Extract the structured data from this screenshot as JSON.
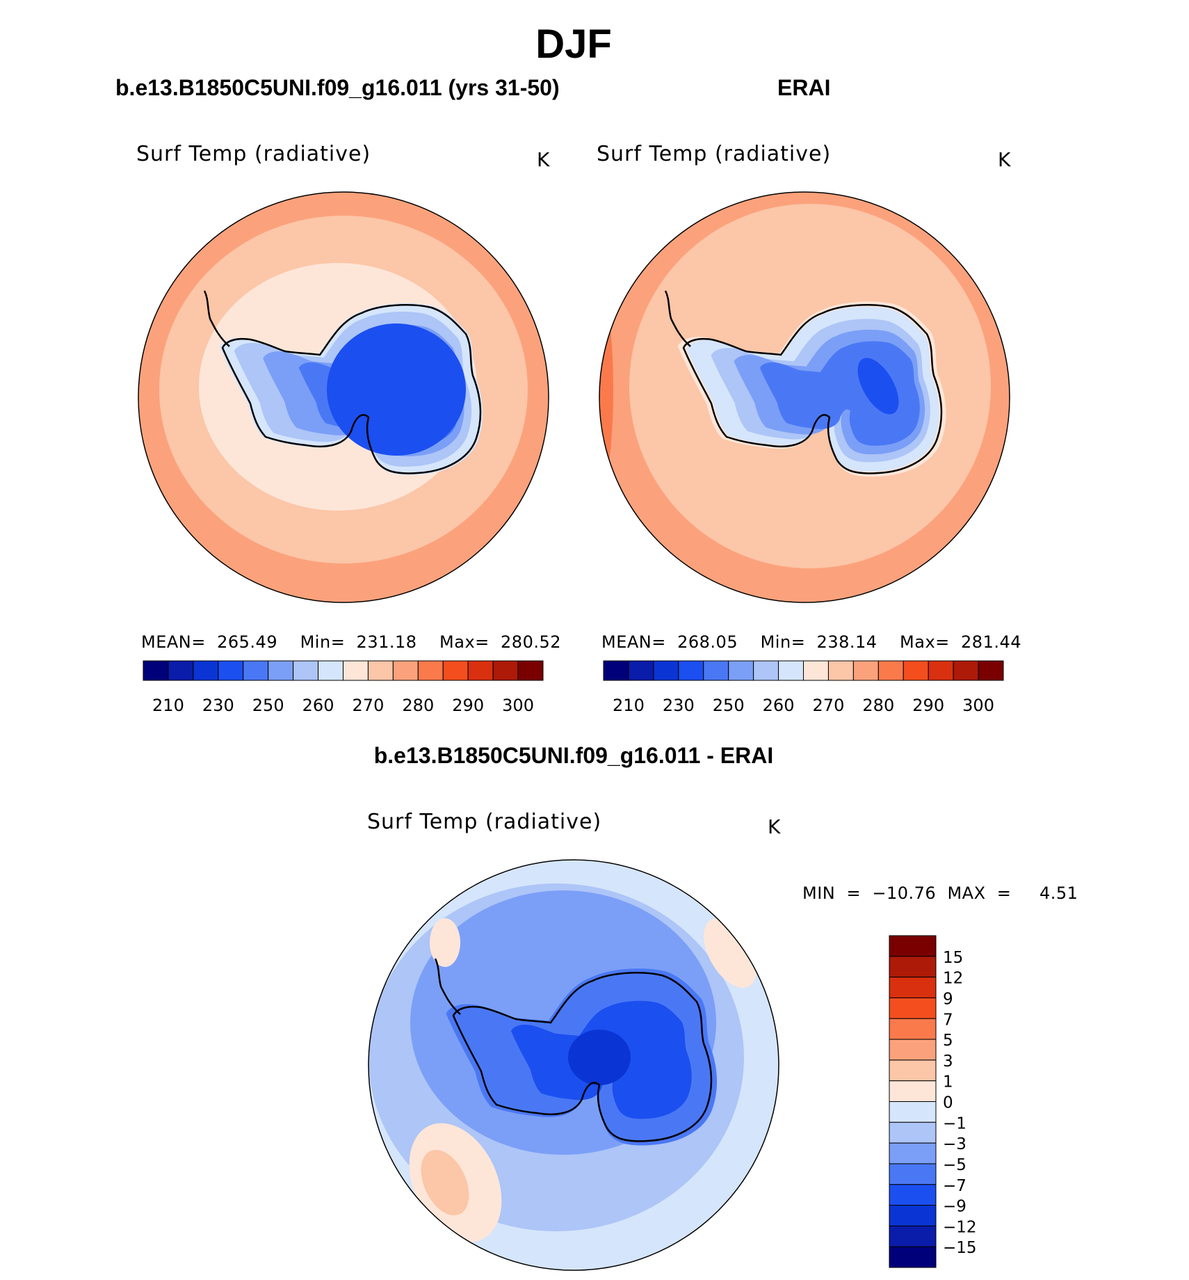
{
  "figure": {
    "season": "DJF",
    "model_title": "b.e13.B1850C5UNI.f09_g16.011 (yrs 31-50)",
    "obs_title": "ERAI",
    "diff_title": "b.e13.B1850C5UNI.f09_g16.011 - ERAI"
  },
  "panels": {
    "model": {
      "variable": "Surf Temp (radiative)",
      "units": "K",
      "stats": "MEAN=  265.49    Min=  231.18    Max=  280.52"
    },
    "obs": {
      "variable": "Surf Temp (radiative)",
      "units": "K",
      "stats": "MEAN=  268.05    Min=  238.14    Max=  281.44"
    },
    "diff": {
      "variable": "Surf Temp (radiative)",
      "units": "K",
      "stats": "MIN  =  −10.76  MAX  =     4.51"
    }
  },
  "chart_data": [
    {
      "type": "heatmap",
      "projection": "south-polar-stereographic",
      "title": "Surf Temp (radiative)",
      "units": "K",
      "mean": 265.49,
      "min": 231.18,
      "max": 280.52,
      "contour_levels": [
        210,
        220,
        230,
        240,
        250,
        255,
        260,
        265,
        270,
        275,
        280,
        285,
        290,
        295,
        300
      ],
      "tick_labels": [
        "210",
        "230",
        "250",
        "260",
        "270",
        "280",
        "290",
        "300"
      ],
      "colors": [
        "#00007a",
        "#0a1caa",
        "#0a35d4",
        "#1b4ff0",
        "#4a78f5",
        "#7b9ff7",
        "#adc5f7",
        "#d5e5fb",
        "#fde6d8",
        "#fcc6a8",
        "#fba27c",
        "#fa7a4c",
        "#f44e1e",
        "#d9300f",
        "#ad1a08",
        "#7a0000"
      ]
    },
    {
      "type": "heatmap",
      "projection": "south-polar-stereographic",
      "title": "Surf Temp (radiative)",
      "units": "K",
      "mean": 268.05,
      "min": 238.14,
      "max": 281.44,
      "contour_levels": [
        210,
        220,
        230,
        240,
        250,
        255,
        260,
        265,
        270,
        275,
        280,
        285,
        290,
        295,
        300
      ],
      "tick_labels": [
        "210",
        "230",
        "250",
        "260",
        "270",
        "280",
        "290",
        "300"
      ],
      "colors": [
        "#00007a",
        "#0a1caa",
        "#0a35d4",
        "#1b4ff0",
        "#4a78f5",
        "#7b9ff7",
        "#adc5f7",
        "#d5e5fb",
        "#fde6d8",
        "#fcc6a8",
        "#fba27c",
        "#fa7a4c",
        "#f44e1e",
        "#d9300f",
        "#ad1a08",
        "#7a0000"
      ]
    },
    {
      "type": "heatmap",
      "projection": "south-polar-stereographic",
      "title": "Surf Temp (radiative)",
      "units": "K",
      "min": -10.76,
      "max": 4.51,
      "contour_levels": [
        -15,
        -12,
        -9,
        -7,
        -5,
        -3,
        -1,
        0,
        1,
        3,
        5,
        7,
        9,
        12,
        15
      ],
      "tick_labels": [
        "15",
        "12",
        "9",
        "7",
        "5",
        "3",
        "1",
        "0",
        "−1",
        "−3",
        "−5",
        "−7",
        "−9",
        "−12",
        "−15"
      ],
      "colors": [
        "#7a0000",
        "#ad1a08",
        "#d9300f",
        "#f44e1e",
        "#fa7a4c",
        "#fba27c",
        "#fcc6a8",
        "#fde6d8",
        "#d5e5fb",
        "#adc5f7",
        "#7b9ff7",
        "#4a78f5",
        "#1b4ff0",
        "#0a35d4",
        "#0a1caa",
        "#00007a"
      ]
    }
  ]
}
